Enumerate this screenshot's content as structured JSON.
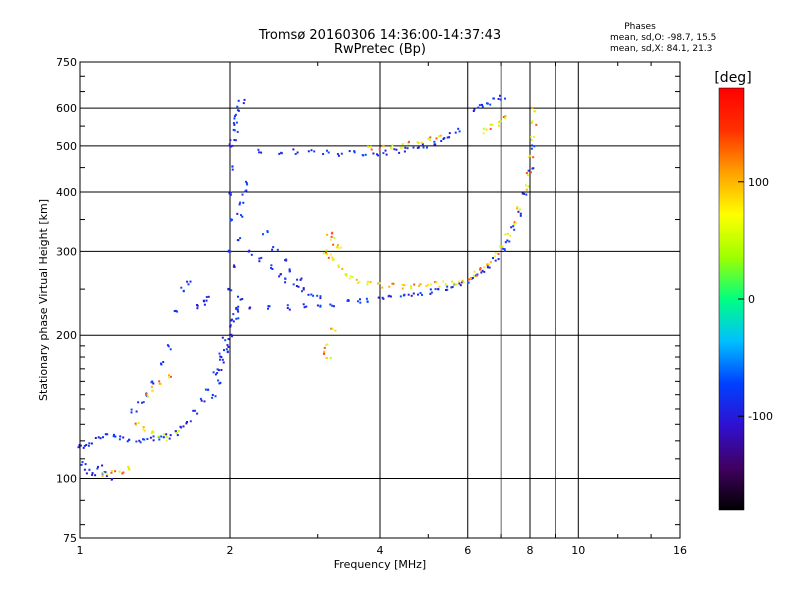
{
  "header": {
    "title_line1": "Tromsø 20160306 14:36:00-14:37:43",
    "title_line2": "RwPretec (Bp)"
  },
  "phases": {
    "heading": "Phases",
    "o_label": "mean, sd,O:",
    "o_values": "-98.7, 15.5",
    "x_label": "mean, sd,X:",
    "x_values": "84.1, 21.3"
  },
  "colorbar": {
    "unit": "[deg]",
    "range": [
      -180,
      180
    ],
    "ticks": [
      100,
      0,
      -100
    ],
    "colors": [
      "#000000",
      "#400060",
      "#3010d0",
      "#0040ff",
      "#00c0ff",
      "#00ff80",
      "#a0ff00",
      "#ffff00",
      "#ffa000",
      "#ff3000",
      "#ff0000"
    ]
  },
  "chart_data": {
    "type": "scatter",
    "title": "Tromsø 20160306 14:36:00-14:37:43",
    "subtitle": "RwPretec (Bp)",
    "xlabel": "Frequency [MHz]",
    "ylabel": "Stationary phase Virtual Height [km]",
    "x_scale": "log",
    "y_scale": "log",
    "xlim": [
      1,
      16
    ],
    "ylim": [
      75,
      750
    ],
    "x_ticks": [
      1,
      2,
      4,
      6,
      8,
      10,
      16
    ],
    "y_ticks": [
      75,
      100,
      200,
      300,
      400,
      500,
      600,
      750
    ],
    "grid": true,
    "legend": "colorbar-right",
    "series": [
      {
        "mode": "O",
        "points": [
          [
            1.0,
            118
          ],
          [
            1.02,
            117
          ],
          [
            1.05,
            119
          ],
          [
            1.08,
            122
          ],
          [
            1.12,
            124
          ],
          [
            1.16,
            123
          ],
          [
            1.2,
            122
          ],
          [
            1.25,
            121
          ],
          [
            1.3,
            121
          ],
          [
            1.35,
            121
          ],
          [
            1.4,
            122
          ],
          [
            1.45,
            122
          ],
          [
            1.5,
            123
          ],
          [
            1.55,
            125
          ],
          [
            1.6,
            128
          ],
          [
            1.65,
            132
          ],
          [
            1.7,
            138
          ],
          [
            1.75,
            146
          ],
          [
            1.8,
            156
          ],
          [
            1.85,
            168
          ],
          [
            1.9,
            182
          ],
          [
            1.95,
            198
          ],
          [
            2.0,
            215
          ],
          [
            1.01,
            108
          ],
          [
            1.03,
            104
          ],
          [
            1.06,
            102
          ],
          [
            1.09,
            106
          ],
          [
            1.12,
            103
          ],
          [
            1.14,
            101
          ],
          [
            1.85,
            150
          ],
          [
            1.88,
            160
          ],
          [
            1.9,
            170
          ],
          [
            1.92,
            178
          ],
          [
            1.95,
            185
          ],
          [
            1.97,
            190
          ],
          [
            2.0,
            200
          ],
          [
            2.02,
            210
          ],
          [
            2.04,
            220
          ],
          [
            2.06,
            230
          ],
          [
            2.08,
            240
          ],
          [
            2.0,
            250
          ],
          [
            2.0,
            300
          ],
          [
            2.0,
            350
          ],
          [
            2.0,
            400
          ],
          [
            2.0,
            450
          ],
          [
            2.0,
            500
          ],
          [
            2.02,
            520
          ],
          [
            2.04,
            540
          ],
          [
            2.05,
            560
          ],
          [
            2.06,
            580
          ],
          [
            2.08,
            600
          ],
          [
            2.1,
            620
          ],
          [
            2.05,
            280
          ],
          [
            2.06,
            320
          ],
          [
            2.08,
            360
          ],
          [
            2.1,
            380
          ],
          [
            2.12,
            400
          ],
          [
            2.14,
            420
          ],
          [
            2.05,
            228
          ],
          [
            2.2,
            228
          ],
          [
            2.4,
            229
          ],
          [
            2.6,
            230
          ],
          [
            2.8,
            231
          ],
          [
            3.0,
            233
          ],
          [
            3.2,
            234
          ],
          [
            3.4,
            236
          ],
          [
            3.6,
            237
          ],
          [
            3.8,
            238
          ],
          [
            4.0,
            240
          ],
          [
            4.2,
            241
          ],
          [
            4.4,
            242
          ],
          [
            4.6,
            244
          ],
          [
            4.8,
            246
          ],
          [
            5.0,
            248
          ],
          [
            5.2,
            250
          ],
          [
            5.4,
            252
          ],
          [
            5.6,
            255
          ],
          [
            5.8,
            258
          ],
          [
            6.0,
            262
          ],
          [
            6.2,
            267
          ],
          [
            6.4,
            273
          ],
          [
            6.6,
            280
          ],
          [
            6.8,
            290
          ],
          [
            7.0,
            302
          ],
          [
            7.2,
            318
          ],
          [
            7.4,
            338
          ],
          [
            7.6,
            362
          ],
          [
            7.8,
            400
          ],
          [
            8.0,
            450
          ],
          [
            8.05,
            500
          ],
          [
            2.3,
            490
          ],
          [
            2.5,
            489
          ],
          [
            2.7,
            488
          ],
          [
            2.9,
            486
          ],
          [
            3.1,
            485
          ],
          [
            3.3,
            484
          ],
          [
            3.5,
            484
          ],
          [
            3.7,
            484
          ],
          [
            3.9,
            485
          ],
          [
            4.1,
            486
          ],
          [
            4.3,
            489
          ],
          [
            4.5,
            494
          ],
          [
            4.7,
            498
          ],
          [
            4.9,
            503
          ],
          [
            5.1,
            509
          ],
          [
            5.3,
            518
          ],
          [
            5.5,
            528
          ],
          [
            5.7,
            540
          ],
          [
            2.2,
            300
          ],
          [
            2.3,
            290
          ],
          [
            2.4,
            280
          ],
          [
            2.5,
            270
          ],
          [
            2.6,
            262
          ],
          [
            2.7,
            255
          ],
          [
            2.8,
            250
          ],
          [
            2.9,
            246
          ],
          [
            3.0,
            243
          ],
          [
            2.35,
            330
          ],
          [
            2.45,
            305
          ],
          [
            2.55,
            290
          ],
          [
            2.65,
            275
          ],
          [
            2.75,
            265
          ],
          [
            6.2,
            600
          ],
          [
            6.4,
            605
          ],
          [
            6.6,
            615
          ],
          [
            6.8,
            625
          ],
          [
            7.0,
            635
          ],
          [
            1.7,
            230
          ],
          [
            1.75,
            235
          ],
          [
            1.8,
            240
          ],
          [
            1.55,
            225
          ],
          [
            1.6,
            250
          ],
          [
            1.65,
            260
          ],
          [
            1.28,
            140
          ],
          [
            1.32,
            145
          ],
          [
            1.36,
            150
          ],
          [
            1.4,
            160
          ],
          [
            1.45,
            175
          ],
          [
            1.5,
            190
          ]
        ]
      },
      {
        "mode": "X",
        "points": [
          [
            3.1,
            300
          ],
          [
            3.15,
            295
          ],
          [
            3.2,
            290
          ],
          [
            3.3,
            280
          ],
          [
            3.4,
            270
          ],
          [
            3.5,
            265
          ],
          [
            3.6,
            262
          ],
          [
            3.8,
            258
          ],
          [
            4.0,
            256
          ],
          [
            4.2,
            255
          ],
          [
            4.4,
            254
          ],
          [
            4.6,
            254
          ],
          [
            4.8,
            255
          ],
          [
            5.0,
            256
          ],
          [
            5.2,
            257
          ],
          [
            5.4,
            258
          ],
          [
            5.6,
            260
          ],
          [
            5.8,
            262
          ],
          [
            6.0,
            265
          ],
          [
            6.2,
            270
          ],
          [
            6.4,
            276
          ],
          [
            6.6,
            285
          ],
          [
            6.8,
            296
          ],
          [
            7.0,
            310
          ],
          [
            7.2,
            326
          ],
          [
            7.4,
            346
          ],
          [
            7.6,
            370
          ],
          [
            7.8,
            410
          ],
          [
            7.9,
            440
          ],
          [
            8.0,
            480
          ],
          [
            8.05,
            520
          ],
          [
            8.1,
            560
          ],
          [
            8.15,
            600
          ],
          [
            3.15,
            330
          ],
          [
            3.2,
            320
          ],
          [
            3.25,
            310
          ],
          [
            3.3,
            305
          ],
          [
            3.8,
            495
          ],
          [
            4.0,
            497
          ],
          [
            4.2,
            500
          ],
          [
            4.4,
            503
          ],
          [
            4.6,
            506
          ],
          [
            4.8,
            512
          ],
          [
            5.0,
            518
          ],
          [
            5.2,
            525
          ],
          [
            6.5,
            540
          ],
          [
            6.7,
            550
          ],
          [
            6.9,
            560
          ],
          [
            7.1,
            575
          ],
          [
            3.05,
            185
          ],
          [
            3.1,
            190
          ],
          [
            3.15,
            180
          ],
          [
            3.2,
            205
          ],
          [
            1.3,
            130
          ],
          [
            1.35,
            128
          ],
          [
            1.4,
            126
          ],
          [
            1.45,
            124
          ],
          [
            1.5,
            122
          ],
          [
            1.55,
            125
          ],
          [
            1.12,
            102
          ],
          [
            1.16,
            103
          ],
          [
            1.2,
            104
          ],
          [
            1.24,
            105
          ],
          [
            1.35,
            150
          ],
          [
            1.4,
            155
          ],
          [
            1.45,
            160
          ],
          [
            1.5,
            165
          ]
        ]
      }
    ]
  }
}
